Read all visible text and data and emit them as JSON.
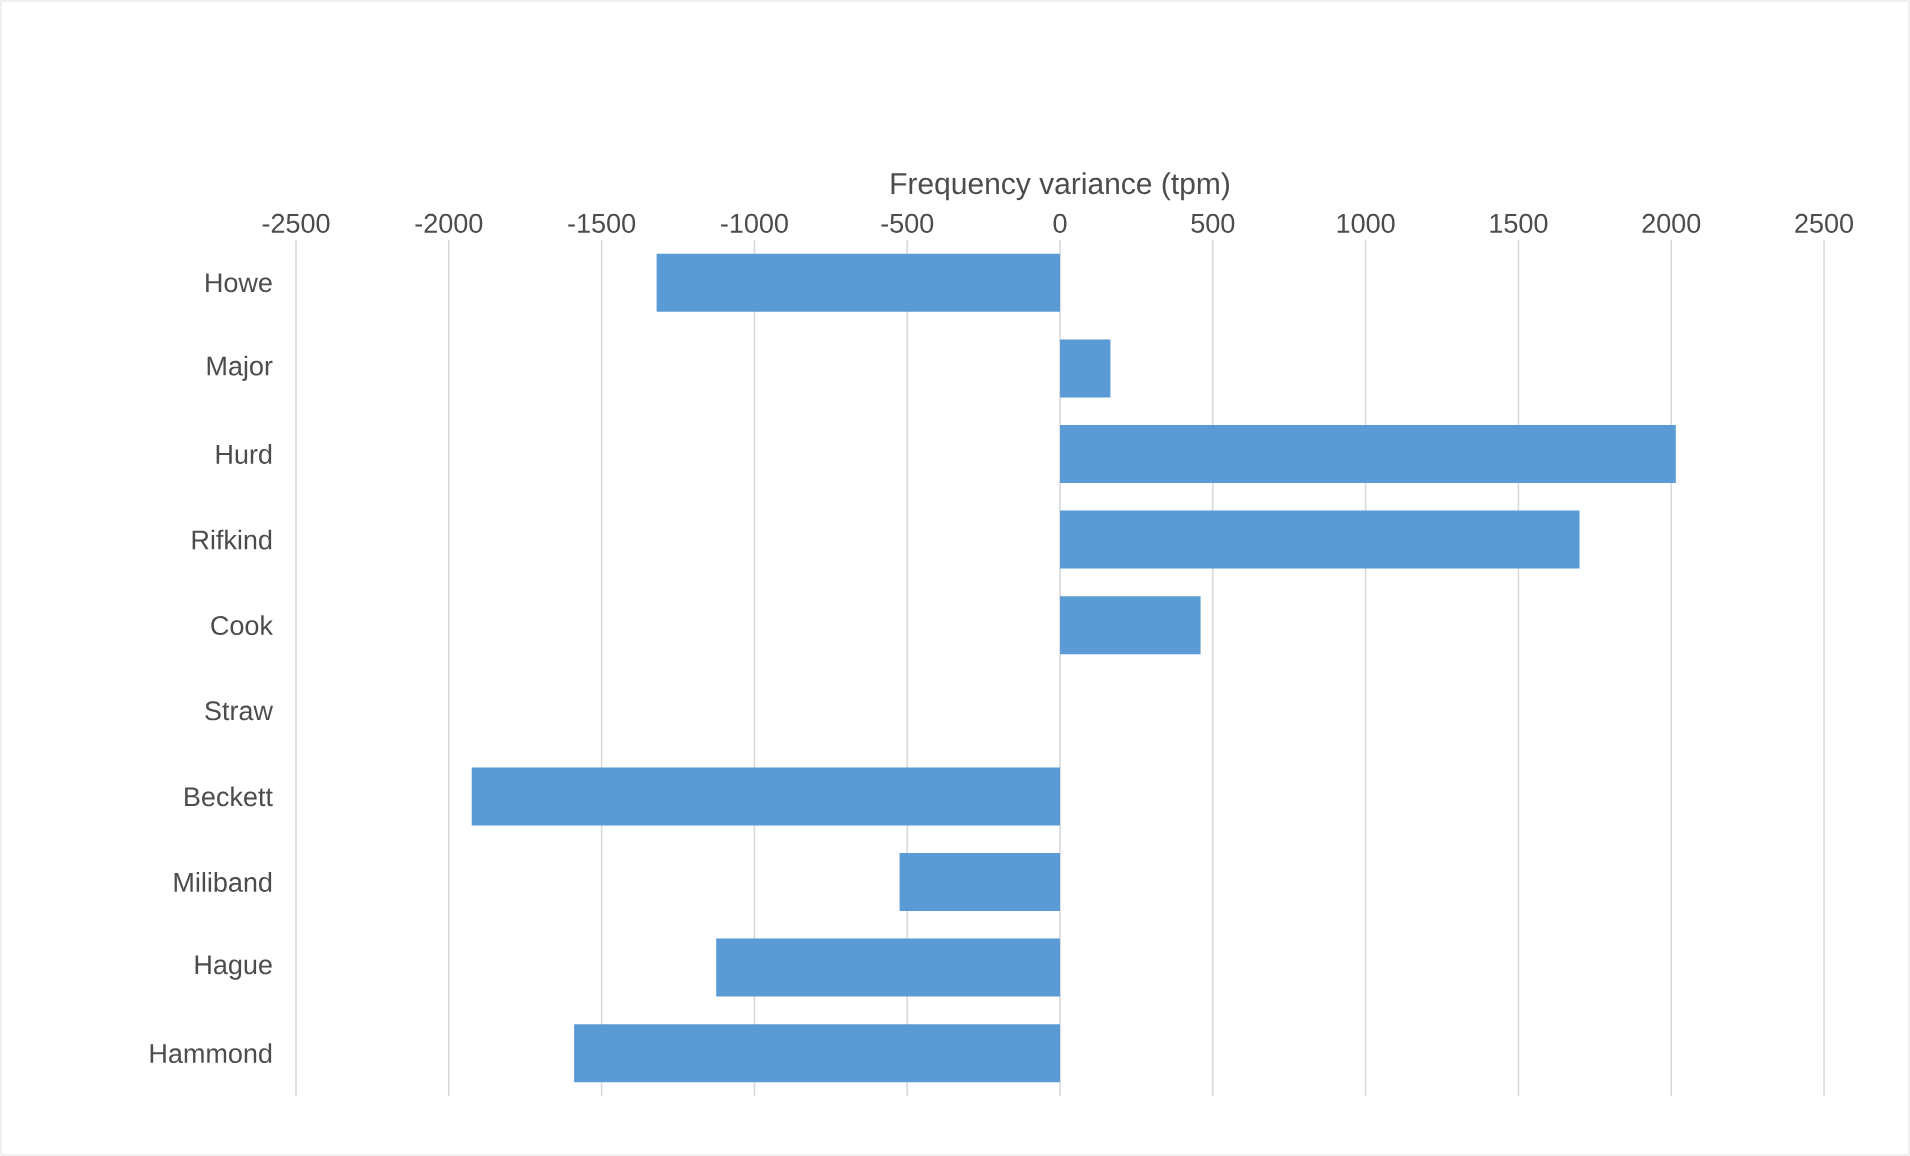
{
  "chart_data": {
    "type": "bar",
    "orientation": "horizontal",
    "xlabel": "Frequency variance (tpm)",
    "categories": [
      "Howe",
      "Major",
      "Hurd",
      "Rifkind",
      "Cook",
      "Straw",
      "Beckett",
      "Miliband",
      "Hague",
      "Hammond"
    ],
    "values": [
      -1320,
      165,
      2015,
      1700,
      460,
      0,
      -1925,
      -525,
      -1125,
      -1590
    ],
    "color": "#5b9bd5",
    "xlim": [
      -2500,
      2500
    ],
    "xticks": [
      -2500,
      -2000,
      -1500,
      -1000,
      -500,
      0,
      500,
      1000,
      1500,
      2000,
      2500
    ],
    "grid": "x"
  }
}
